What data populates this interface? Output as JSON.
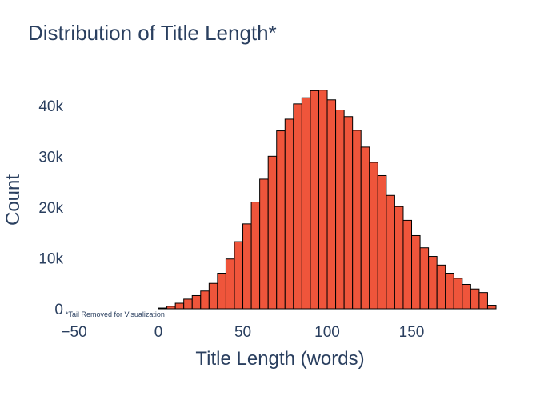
{
  "chart_data": {
    "type": "bar",
    "title": "Distribution of Title Length*",
    "xlabel": "Title Length (words)",
    "ylabel": "Count",
    "annotation": "*Tail Removed for Visualization",
    "bin_width": 5,
    "bin_starts": [
      0,
      5,
      10,
      15,
      20,
      25,
      30,
      35,
      40,
      45,
      50,
      55,
      60,
      65,
      70,
      75,
      80,
      85,
      90,
      95,
      100,
      105,
      110,
      115,
      120,
      125,
      130,
      135,
      140,
      145,
      150,
      155,
      160,
      165,
      170,
      175,
      180,
      185,
      190,
      195
    ],
    "values": [
      150,
      500,
      1100,
      1900,
      2600,
      3500,
      5000,
      7000,
      9800,
      13200,
      16700,
      21000,
      25500,
      30000,
      35000,
      37300,
      40300,
      41500,
      42900,
      43000,
      41100,
      39100,
      37800,
      35100,
      31800,
      28800,
      26200,
      22300,
      20100,
      17400,
      14400,
      12000,
      10300,
      8600,
      7000,
      6000,
      4800,
      3900,
      3200,
      700
    ],
    "x_range": [
      -55,
      200
    ],
    "y_range": [
      0,
      45000
    ],
    "x_ticks": [
      -50,
      0,
      50,
      100,
      150
    ],
    "x_tick_labels": [
      "−50",
      "0",
      "50",
      "100",
      "150"
    ],
    "y_ticks": [
      0,
      10000,
      20000,
      30000,
      40000
    ],
    "y_tick_labels": [
      "0",
      "10k",
      "20k",
      "30k",
      "40k"
    ],
    "colors": {
      "bar_fill": "#ef553b",
      "bar_line": "#000000",
      "text": "#2a3f5f"
    },
    "grid": false,
    "legend": "none"
  }
}
